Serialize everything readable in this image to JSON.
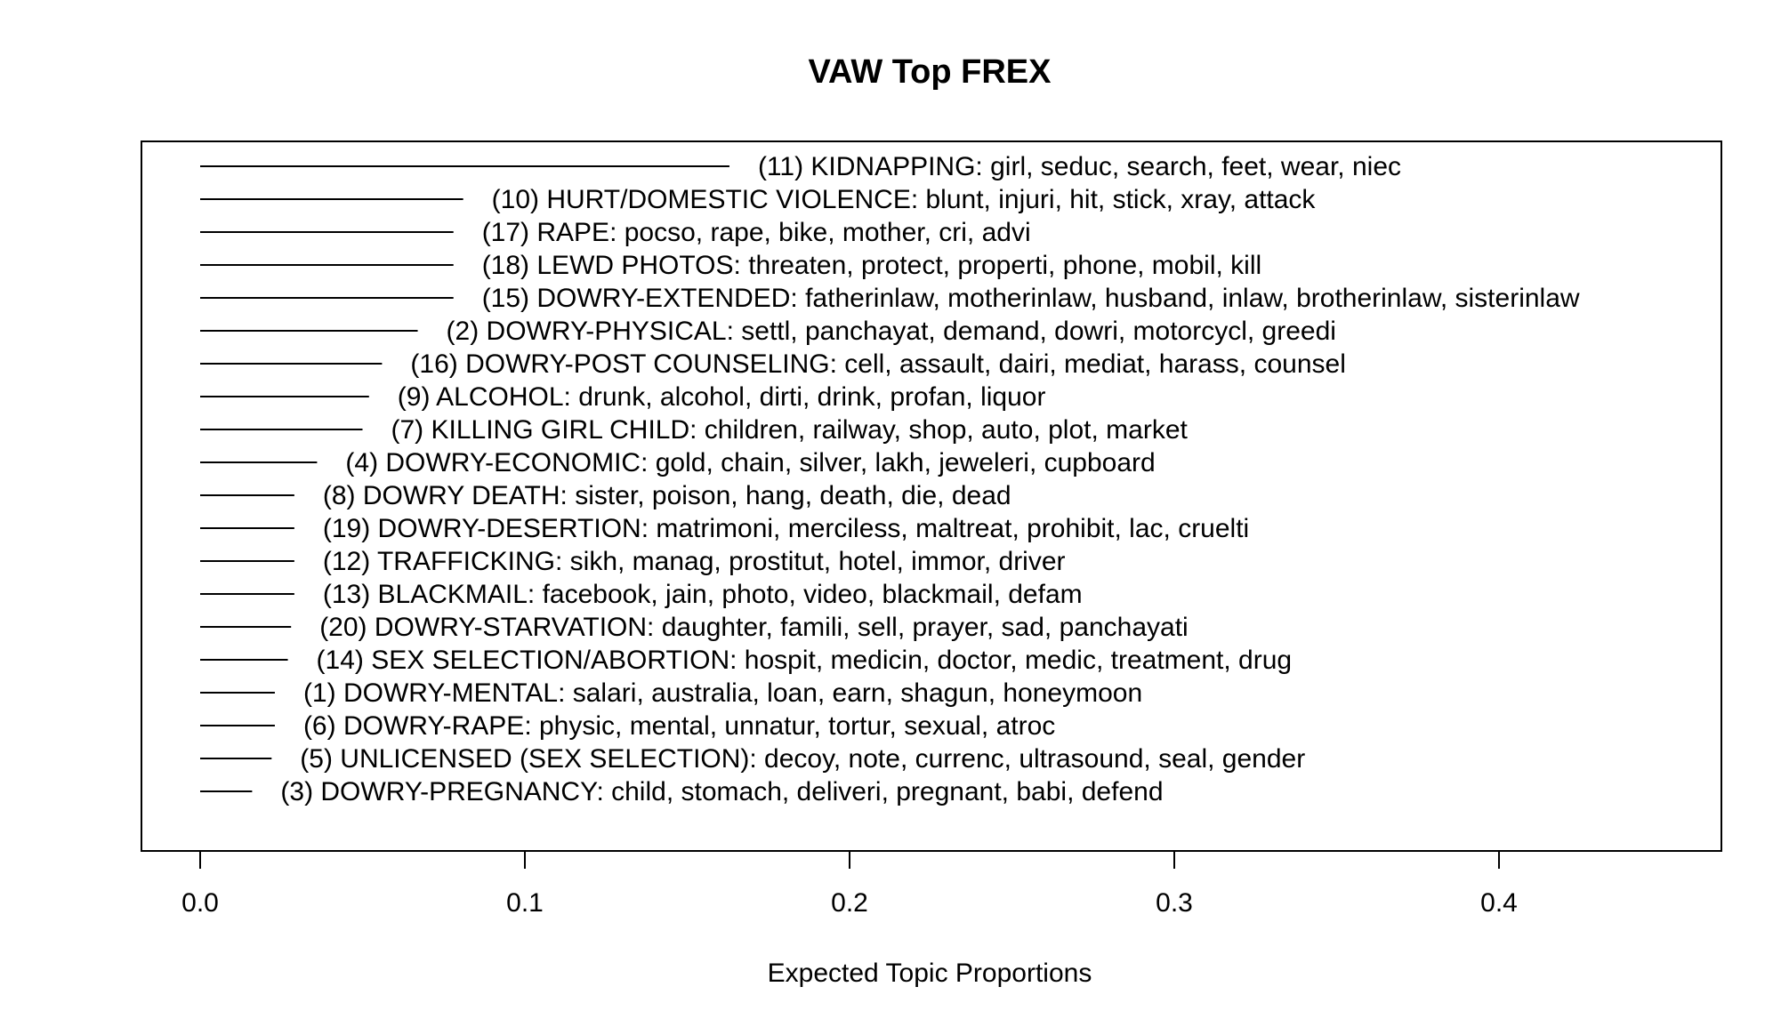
{
  "chart_data": {
    "type": "bar",
    "orientation": "horizontal",
    "title": "VAW Top FREX",
    "xlabel": "Expected Topic Proportions",
    "ylabel": "",
    "xlim": [
      0.0,
      0.47
    ],
    "xticks": [
      "0.0",
      "0.1",
      "0.2",
      "0.3",
      "0.4"
    ],
    "grid": false,
    "bar_color": "#000000",
    "categories": [
      "(11) KIDNAPPING: girl, seduc, search, feet, wear, niec",
      "(10) HURT/DOMESTIC VIOLENCE: blunt, injuri, hit, stick, xray, attack",
      "(17) RAPE: pocso, rape, bike, mother, cri, advi",
      "(18) LEWD PHOTOS: threaten, protect, properti, phone, mobil, kill",
      "(15) DOWRY-EXTENDED: fatherinlaw, motherinlaw, husband, inlaw, brotherinlaw, sisterinlaw",
      "(2) DOWRY-PHYSICAL: settl, panchayat, demand, dowri, motorcycl, greedi",
      "(16) DOWRY-POST COUNSELING: cell, assault, dairi, mediat, harass, counsel",
      "(9) ALCOHOL: drunk, alcohol, dirti, drink, profan, liquor",
      "(7) KILLING GIRL CHILD: children, railway, shop, auto, plot, market",
      "(4) DOWRY-ECONOMIC: gold, chain, silver, lakh, jeweleri, cupboard",
      "(8) DOWRY DEATH: sister, poison, hang, death, die, dead",
      "(19) DOWRY-DESERTION: matrimoni, merciless, maltreat, prohibit, lac, cruelti",
      "(12) TRAFFICKING: sikh, manag, prostitut, hotel, immor, driver",
      "(13) BLACKMAIL: facebook, jain, photo, video, blackmail, defam",
      "(20) DOWRY-STARVATION: daughter, famili, sell, prayer, sad, panchayati",
      "(14) SEX SELECTION/ABORTION: hospit, medicin, doctor, medic, treatment, drug",
      "(1) DOWRY-MENTAL: salari, australia, loan, earn, shagun, honeymoon",
      "(6) DOWRY-RAPE: physic, mental, unnatur, tortur, sexual, atroc",
      "(5) UNLICENSED (SEX SELECTION): decoy, note, currenc, ultrasound, seal, gender",
      "(3) DOWRY-PREGNANCY: child, stomach, deliveri, pregnant, babi, defend"
    ],
    "values": [
      0.163,
      0.081,
      0.078,
      0.078,
      0.078,
      0.067,
      0.056,
      0.052,
      0.05,
      0.036,
      0.029,
      0.029,
      0.029,
      0.029,
      0.028,
      0.027,
      0.023,
      0.023,
      0.022,
      0.016
    ]
  }
}
